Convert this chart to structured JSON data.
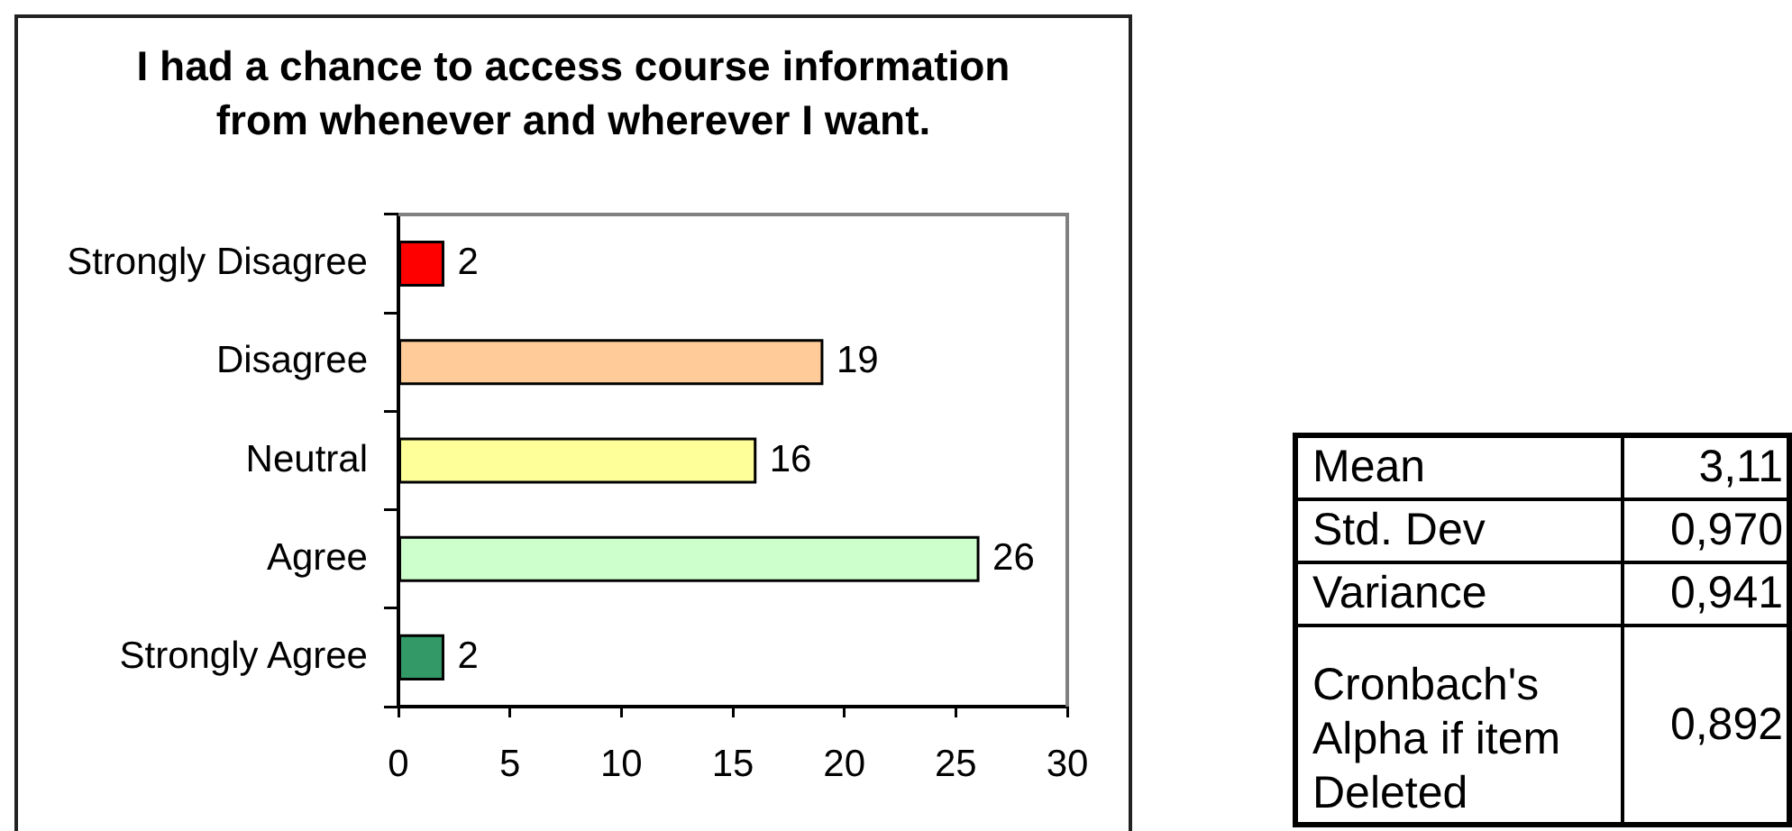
{
  "chart_data": {
    "type": "bar",
    "orientation": "horizontal",
    "title": "I had a chance to access course information from whenever and wherever I want.",
    "categories": [
      "Strongly Disagree",
      "Disagree",
      "Neutral",
      "Agree",
      "Strongly Agree"
    ],
    "values": [
      2,
      19,
      16,
      26,
      2
    ],
    "colors": [
      "#ff0000",
      "#ffcc99",
      "#ffff99",
      "#ccffcc",
      "#339966"
    ],
    "xlim": [
      0,
      30
    ],
    "xticks": [
      0,
      5,
      10,
      15,
      20,
      25,
      30
    ],
    "data_labels": true,
    "annotations": [
      "Mean",
      "3,11",
      "Std. Dev",
      "0,970",
      "Variance",
      "0,941",
      "Cronbach's Alpha if item Deleted",
      "0,892"
    ]
  }
}
